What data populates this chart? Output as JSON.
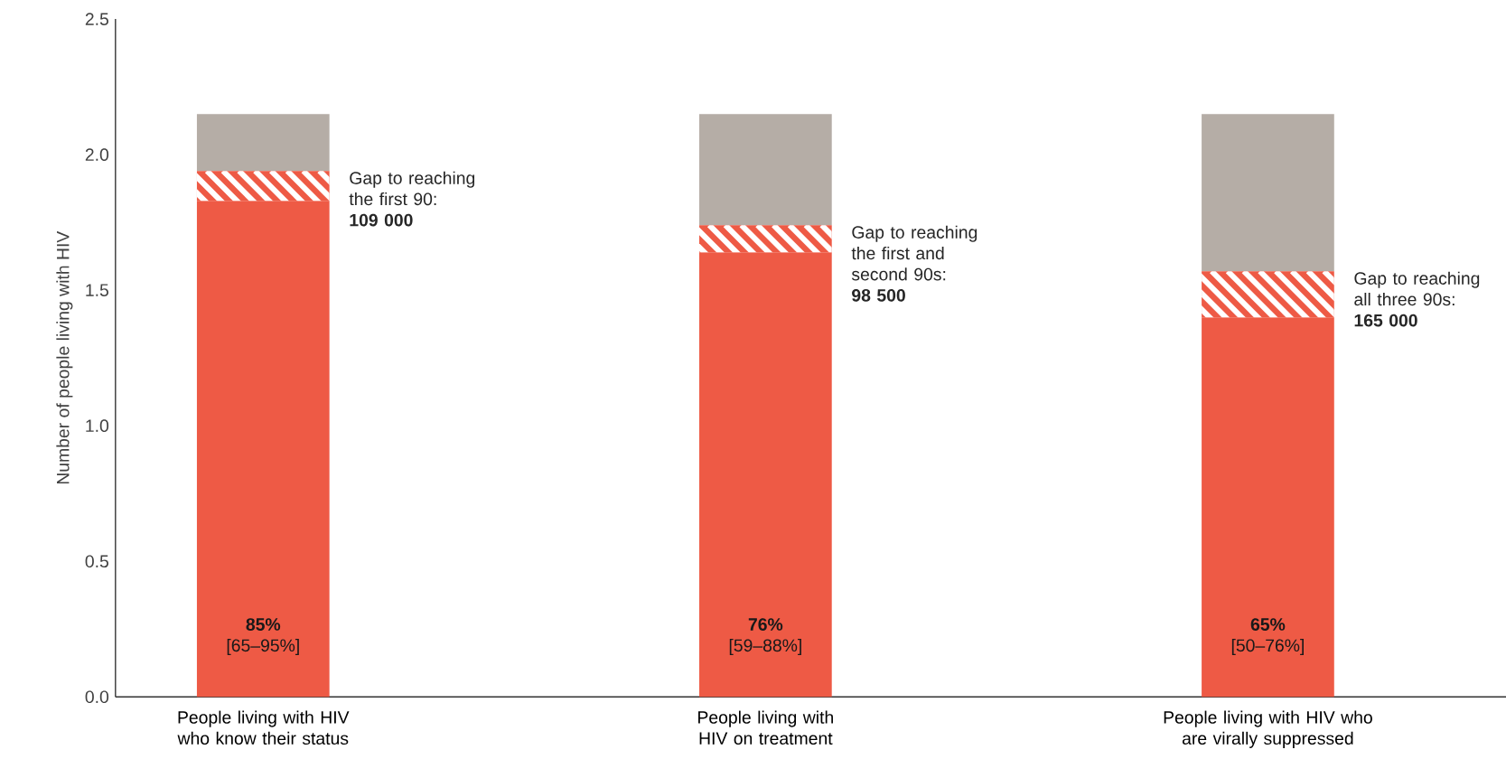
{
  "chart_data": {
    "type": "bar",
    "stacked": true,
    "ylabel": "Number of people living with HIV",
    "categories": [
      "People living with HIV who know their status",
      "People living with HIV on treatment",
      "People living with HIV who are virally suppressed"
    ],
    "series": [
      {
        "color": "#ee5a45",
        "values": [
          1.83,
          1.64,
          1.4
        ]
      },
      {
        "color": "#ee5a45",
        "values": [
          0.11,
          0.1,
          0.17
        ]
      },
      {
        "color": "#b5ada6",
        "values": [
          0.21,
          0.41,
          0.58
        ]
      }
    ],
    "ylim": [
      0,
      2.5
    ],
    "yticks": [
      {
        "value": 0,
        "label": "0.0"
      },
      {
        "value": 0.5,
        "label": "0.5"
      },
      {
        "value": 1,
        "label": "1.0"
      },
      {
        "value": 1.5,
        "label": "1.5"
      },
      {
        "value": 2,
        "label": "2.0"
      },
      {
        "value": 2.5,
        "label": "2.5"
      }
    ],
    "annotations": [
      "**85%** [65–95%]",
      "**76%** [59–88%]",
      "**65%** [50–76%]",
      "Gap to reaching the first 90: **109 000**",
      "Gap to reaching the first and second 90s: **98 500**",
      "Gap to reaching all three 90s: **165 000**"
    ]
  }
}
